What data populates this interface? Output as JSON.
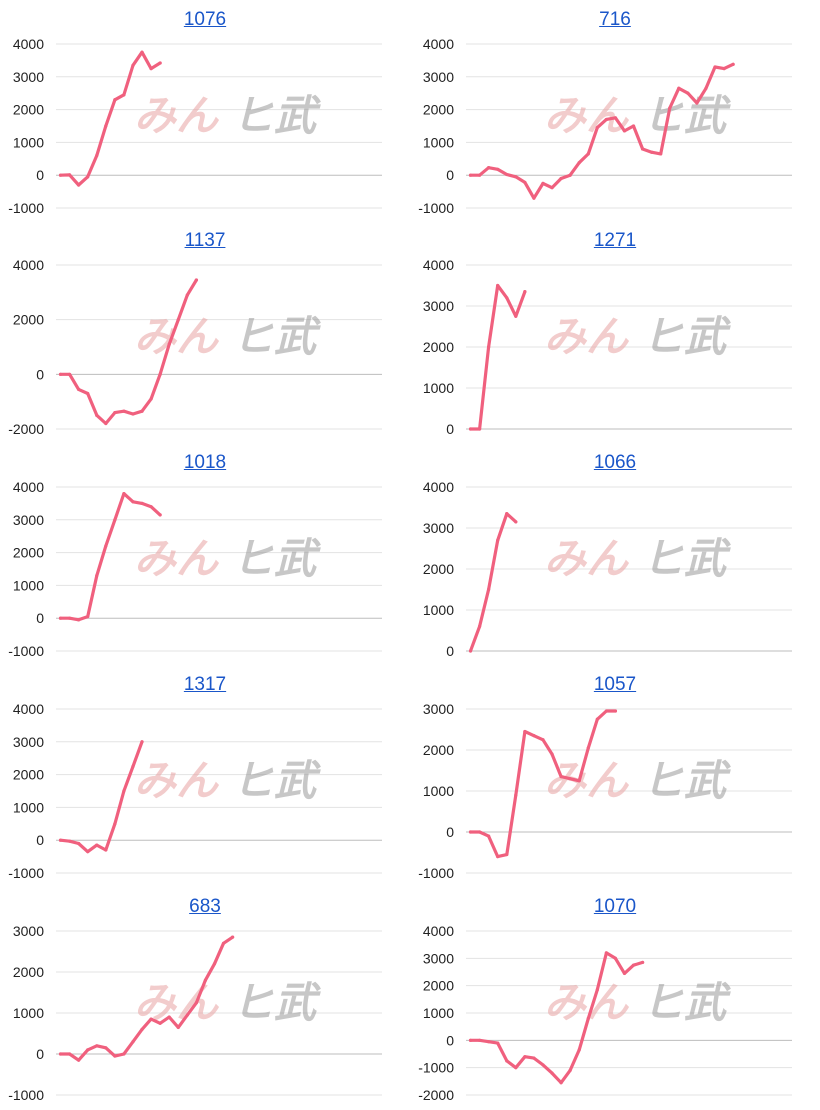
{
  "colors": {
    "series": "#f0607e",
    "title": "#1a56c9",
    "grid": "#e3e3e3",
    "zero": "#bdbdbd"
  },
  "watermark": {
    "part1": "みん",
    "part2": "ヒ武"
  },
  "chart_data": [
    {
      "type": "line",
      "title": "1076",
      "ylim": [
        -1000,
        4000
      ],
      "yticks": [
        -1000,
        0,
        1000,
        2000,
        3000,
        4000
      ],
      "grid": true,
      "x_count": 36,
      "series": [
        {
          "values": [
            0,
            10,
            -300,
            -50,
            600,
            1500,
            2300,
            2450,
            3350,
            3750,
            3250,
            3420
          ]
        }
      ]
    },
    {
      "type": "line",
      "title": "716",
      "ylim": [
        -1000,
        4000
      ],
      "yticks": [
        -1000,
        0,
        1000,
        2000,
        3000,
        4000
      ],
      "grid": true,
      "x_count": 36,
      "series": [
        {
          "values": [
            0,
            0,
            230,
            180,
            20,
            -50,
            -220,
            -700,
            -250,
            -380,
            -100,
            0,
            380,
            650,
            1450,
            1700,
            1750,
            1350,
            1500,
            800,
            700,
            650,
            2050,
            2650,
            2500,
            2200,
            2650,
            3300,
            3250,
            3380
          ]
        }
      ]
    },
    {
      "type": "line",
      "title": "1137",
      "ylim": [
        -2000,
        4000
      ],
      "yticks": [
        -2000,
        0,
        2000,
        4000
      ],
      "grid": true,
      "x_count": 36,
      "series": [
        {
          "values": [
            0,
            0,
            -550,
            -700,
            -1500,
            -1800,
            -1400,
            -1350,
            -1450,
            -1350,
            -900,
            0,
            1100,
            2000,
            2900,
            3450
          ]
        }
      ]
    },
    {
      "type": "line",
      "title": "1271",
      "ylim": [
        0,
        4000
      ],
      "yticks": [
        0,
        1000,
        2000,
        3000,
        4000
      ],
      "grid": true,
      "x_count": 36,
      "series": [
        {
          "values": [
            0,
            0,
            2000,
            3500,
            3200,
            2750,
            3350
          ]
        }
      ]
    },
    {
      "type": "line",
      "title": "1018",
      "ylim": [
        -1000,
        4000
      ],
      "yticks": [
        -1000,
        0,
        1000,
        2000,
        3000,
        4000
      ],
      "grid": true,
      "x_count": 36,
      "series": [
        {
          "values": [
            0,
            0,
            -50,
            50,
            1300,
            2200,
            3000,
            3800,
            3550,
            3500,
            3400,
            3150
          ]
        }
      ]
    },
    {
      "type": "line",
      "title": "1066",
      "ylim": [
        0,
        4000
      ],
      "yticks": [
        0,
        1000,
        2000,
        3000,
        4000
      ],
      "grid": true,
      "x_count": 36,
      "series": [
        {
          "values": [
            0,
            600,
            1500,
            2700,
            3350,
            3150
          ]
        }
      ]
    },
    {
      "type": "line",
      "title": "1317",
      "ylim": [
        -1000,
        4000
      ],
      "yticks": [
        -1000,
        0,
        1000,
        2000,
        3000,
        4000
      ],
      "grid": true,
      "x_count": 36,
      "series": [
        {
          "values": [
            0,
            -30,
            -100,
            -350,
            -150,
            -300,
            500,
            1500,
            2250,
            3000
          ]
        }
      ]
    },
    {
      "type": "line",
      "title": "1057",
      "ylim": [
        -1000,
        3000
      ],
      "yticks": [
        -1000,
        0,
        1000,
        2000,
        3000
      ],
      "grid": true,
      "x_count": 36,
      "series": [
        {
          "values": [
            0,
            0,
            -100,
            -600,
            -550,
            900,
            2450,
            2350,
            2250,
            1900,
            1350,
            1300,
            1250,
            2050,
            2750,
            2950,
            2950
          ]
        }
      ]
    },
    {
      "type": "line",
      "title": "683",
      "ylim": [
        -1000,
        3000
      ],
      "yticks": [
        -1000,
        0,
        1000,
        2000,
        3000
      ],
      "grid": true,
      "x_count": 36,
      "series": [
        {
          "values": [
            0,
            0,
            -150,
            100,
            200,
            150,
            -50,
            0,
            300,
            600,
            850,
            750,
            900,
            650,
            950,
            1250,
            1800,
            2200,
            2700,
            2850
          ]
        }
      ]
    },
    {
      "type": "line",
      "title": "1070",
      "ylim": [
        -2000,
        4000
      ],
      "yticks": [
        -2000,
        -1000,
        0,
        1000,
        2000,
        3000,
        4000
      ],
      "grid": true,
      "x_count": 36,
      "series": [
        {
          "values": [
            0,
            0,
            -50,
            -100,
            -750,
            -1000,
            -600,
            -650,
            -900,
            -1200,
            -1550,
            -1100,
            -350,
            800,
            1850,
            3200,
            3000,
            2450,
            2750,
            2850
          ]
        }
      ]
    }
  ]
}
